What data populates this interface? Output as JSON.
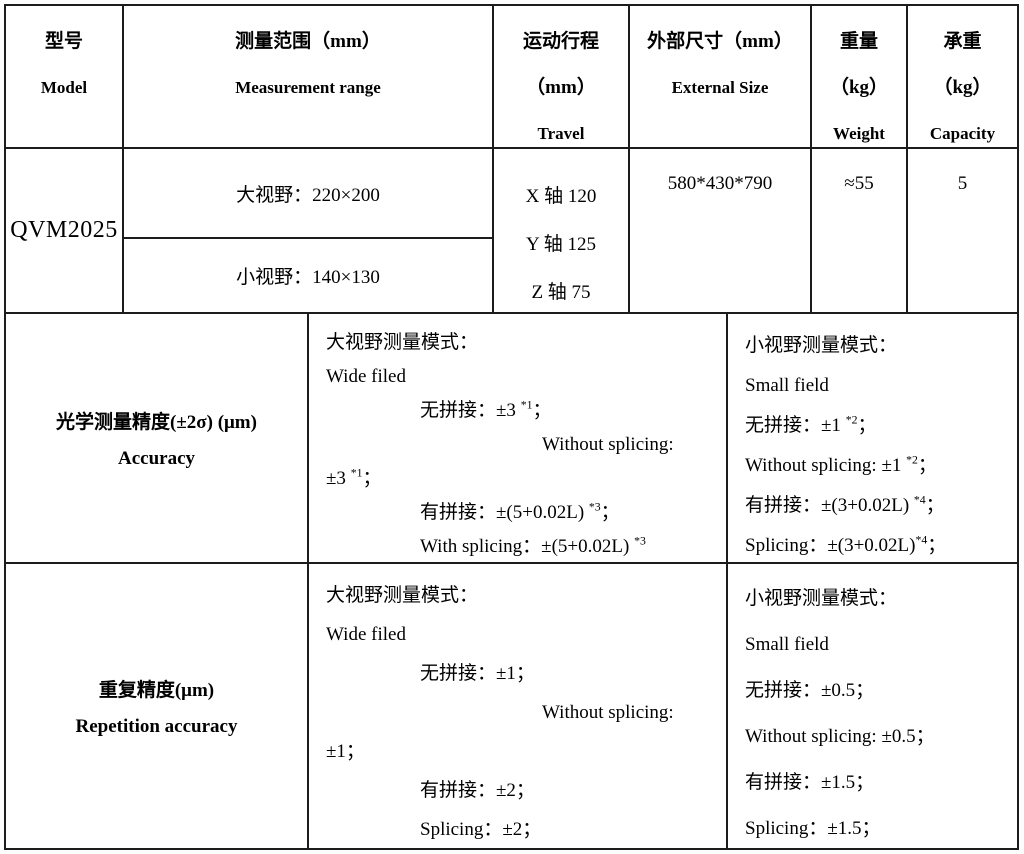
{
  "colors": {
    "border": "#1c1c1c",
    "text": "#000000",
    "background": "#ffffff"
  },
  "table": {
    "header": {
      "model_zh": "型号",
      "model_en": "Model",
      "range_zh": "测量范围（mm）",
      "range_en": "Measurement range",
      "travel_zh": "运动行程",
      "travel_unit": "（mm）",
      "travel_en": "Travel",
      "size_zh": "外部尺寸（mm）",
      "size_en": "External Size",
      "weight_zh": "重量",
      "weight_unit": "（kg）",
      "weight_en": "Weight",
      "capacity_zh": "承重",
      "capacity_unit": "（kg）",
      "capacity_en": "Capacity"
    },
    "model_row": {
      "model": "QVM2025",
      "range_wide": "大视野：220×200",
      "range_small": "小视野：140×130",
      "travel_lines": [
        {
          "text": "X 轴 120"
        },
        {
          "text": "Y 轴 125"
        },
        {
          "text": "Z 轴 75"
        }
      ],
      "external_size": "580*430*790",
      "weight": "≈55",
      "capacity": "5"
    },
    "accuracy_row": {
      "label_zh": "光学测量精度(±2σ) (μm)",
      "label_en": "Accuracy",
      "wide_lines": [
        {
          "text": "大视野测量模式：",
          "indent": 0
        },
        {
          "text": "Wide filed",
          "indent": 0
        },
        {
          "text": "无拼接：±3 ^{*1}；",
          "indent": 1
        },
        {
          "text": "Without splicing:",
          "indent": 2
        },
        {
          "text": "±3 ^{*1}；",
          "indent": 0
        },
        {
          "text": "有拼接：±(5+0.02L) ^{*3}；",
          "indent": 1
        },
        {
          "text": "With splicing：±(5+0.02L) ^{*3}",
          "indent": 1
        }
      ],
      "small_lines": [
        {
          "text": "小视野测量模式：",
          "indent": 0
        },
        {
          "text": "Small field",
          "indent": 0
        },
        {
          "text": "无拼接：±1 ^{*2}；",
          "indent": 0
        },
        {
          "text": "Without splicing: ±1 ^{*2}；",
          "indent": 0
        },
        {
          "text": "有拼接：±(3+0.02L) ^{*4}；",
          "indent": 0
        },
        {
          "text": "Splicing：±(3+0.02L)^{*4}；",
          "indent": 0
        }
      ]
    },
    "repetition_row": {
      "label_zh": "重复精度(μm)",
      "label_en": "Repetition accuracy",
      "wide_lines": [
        {
          "text": "大视野测量模式：",
          "indent": 0
        },
        {
          "text": "Wide filed",
          "indent": 0
        },
        {
          "text": "无拼接：±1；",
          "indent": 1
        },
        {
          "text": "Without splicing:",
          "indent": 2
        },
        {
          "text": "±1；",
          "indent": 0
        },
        {
          "text": "有拼接：±2；",
          "indent": 1
        },
        {
          "text": "Splicing：±2；",
          "indent": 1
        }
      ],
      "small_lines": [
        {
          "text": "小视野测量模式：",
          "indent": 0
        },
        {
          "text": "Small field",
          "indent": 0
        },
        {
          "text": "无拼接：±0.5；",
          "indent": 0
        },
        {
          "text": "Without splicing: ±0.5；",
          "indent": 0
        },
        {
          "text": "有拼接：±1.5；",
          "indent": 0
        },
        {
          "text": "Splicing：±1.5；",
          "indent": 0
        }
      ]
    }
  }
}
